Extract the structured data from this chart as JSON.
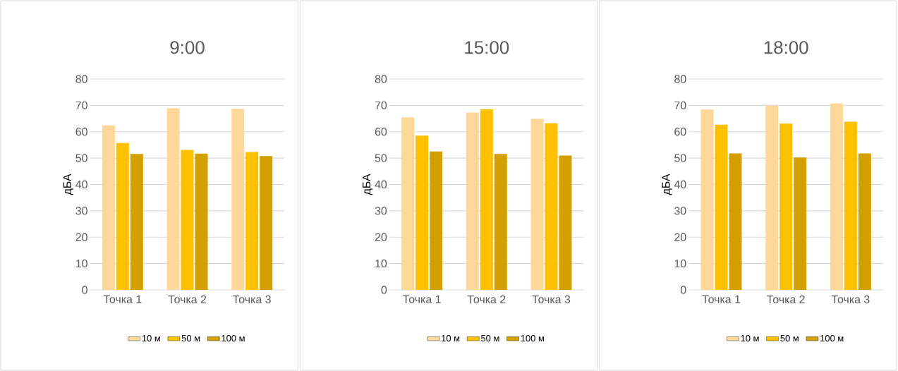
{
  "chart_data": [
    {
      "type": "bar",
      "title": "9:00",
      "ylabel": "дБА",
      "categories": [
        "Точка 1",
        "Точка 2",
        "Точка 3"
      ],
      "series": [
        {
          "name": "10 м",
          "color": "#FFD899",
          "values": [
            62.4,
            68.9,
            68.7
          ]
        },
        {
          "name": "50 м",
          "color": "#FFC000",
          "values": [
            55.7,
            53.1,
            52.3
          ]
        },
        {
          "name": "100 м",
          "color": "#D4A000",
          "values": [
            51.6,
            51.7,
            50.8
          ]
        }
      ],
      "ylim": [
        0,
        80
      ],
      "yticks": [
        0,
        10,
        20,
        30,
        40,
        50,
        60,
        70,
        80
      ],
      "grid": "y",
      "legend": "bottom"
    },
    {
      "type": "bar",
      "title": "15:00",
      "ylabel": "дБА",
      "categories": [
        "Точка 1",
        "Точка 2",
        "Точка 3"
      ],
      "series": [
        {
          "name": "10 м",
          "color": "#FFD899",
          "values": [
            65.5,
            67.3,
            64.9
          ]
        },
        {
          "name": "50 м",
          "color": "#FFC000",
          "values": [
            58.5,
            68.5,
            63.2
          ]
        },
        {
          "name": "100 м",
          "color": "#D4A000",
          "values": [
            52.5,
            51.6,
            51.0
          ]
        }
      ],
      "ylim": [
        0,
        80
      ],
      "yticks": [
        0,
        10,
        20,
        30,
        40,
        50,
        60,
        70,
        80
      ],
      "grid": "y",
      "legend": "bottom"
    },
    {
      "type": "bar",
      "title": "18:00",
      "ylabel": "дБА",
      "categories": [
        "Точка 1",
        "Точка 2",
        "Точка 3"
      ],
      "series": [
        {
          "name": "10 м",
          "color": "#FFD899",
          "values": [
            68.4,
            69.9,
            70.7
          ]
        },
        {
          "name": "50 м",
          "color": "#FFC000",
          "values": [
            62.7,
            63.1,
            63.8
          ]
        },
        {
          "name": "100 м",
          "color": "#D4A000",
          "values": [
            51.8,
            50.2,
            51.8
          ]
        }
      ],
      "ylim": [
        0,
        80
      ],
      "yticks": [
        0,
        10,
        20,
        30,
        40,
        50,
        60,
        70,
        80
      ],
      "grid": "y",
      "legend": "bottom"
    }
  ]
}
